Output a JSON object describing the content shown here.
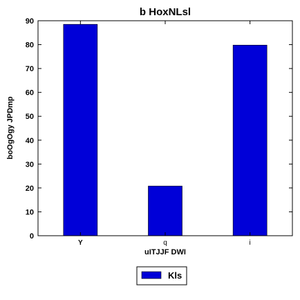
{
  "chart_data": {
    "type": "bar",
    "title": "b HoxNLsl",
    "xlabel": "uITJJF DWI",
    "ylabel": "boOgOgy JPDmp",
    "categories": [
      "Y",
      "q",
      "i"
    ],
    "series": [
      {
        "name": "Kls",
        "values": [
          88.5,
          20.8,
          79.8
        ],
        "color": "#0000d8"
      }
    ],
    "ylim": [
      0,
      90
    ],
    "yticks": [
      0,
      10,
      20,
      30,
      40,
      50,
      60,
      70,
      80,
      90
    ],
    "grid": false,
    "legend_position": "bottom-center"
  }
}
